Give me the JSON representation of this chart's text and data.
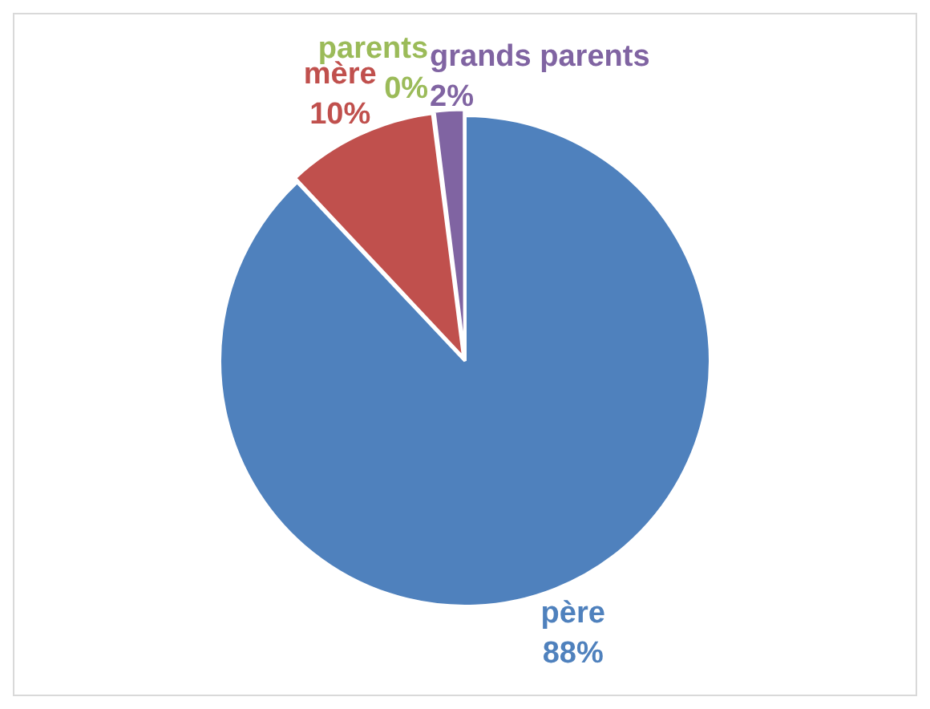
{
  "chart_data": {
    "type": "pie",
    "categories": [
      "père",
      "mère",
      "parents",
      "grands parents"
    ],
    "values": [
      88,
      10,
      0,
      2
    ],
    "value_labels": [
      "88%",
      "10%",
      "0%",
      "2%"
    ],
    "colors": [
      "#4f81bd",
      "#c0504d",
      "#9bbb59",
      "#8064a2"
    ],
    "legend": false
  }
}
